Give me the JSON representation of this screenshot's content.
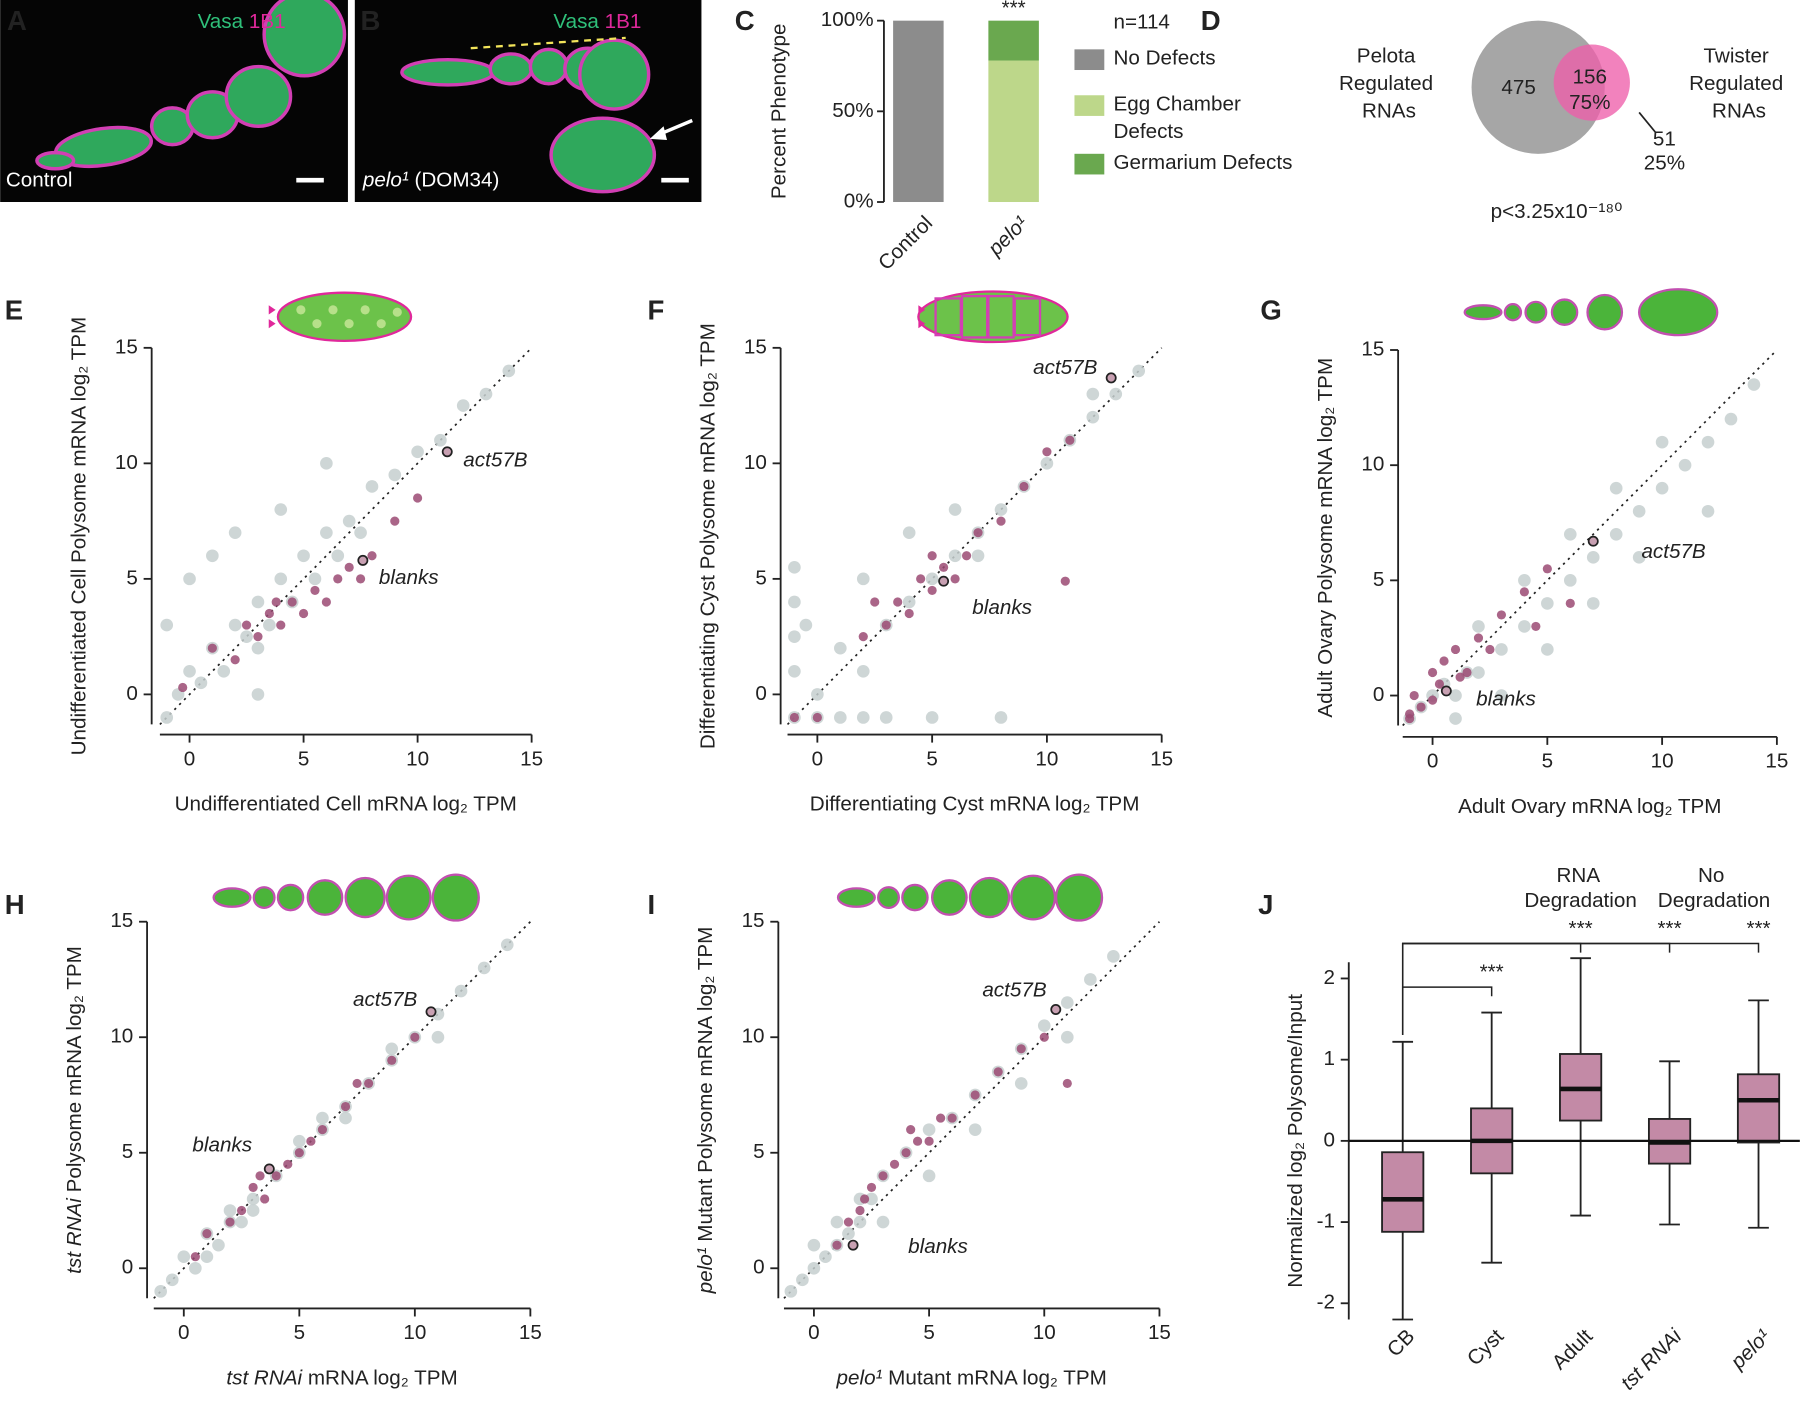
{
  "panel_labels": [
    "A",
    "B",
    "C",
    "D",
    "E",
    "F",
    "G",
    "H",
    "I",
    "J"
  ],
  "micrographs": [
    {
      "stain_1": "Vasa",
      "stain_2": "1B1",
      "caption": [
        {
          "text": "Control"
        }
      ]
    },
    {
      "stain_1": "Vasa",
      "stain_2": "1B1",
      "caption": [
        {
          "text": "pelo¹",
          "italic": true
        },
        {
          "text": " (DOM34)"
        }
      ]
    }
  ],
  "chart_data": [
    {
      "type": "bar",
      "stacked": true,
      "ylabel": [
        {
          "text": "Percent Phenotype"
        }
      ],
      "categories": [
        "Control",
        "pelo¹"
      ],
      "categories_italic": [
        false,
        true
      ],
      "series": [
        {
          "name": "No Defects",
          "color": "#8c8c8c",
          "values": [
            100,
            0
          ]
        },
        {
          "name": "Egg Chamber Defects",
          "color": "#bdd78a",
          "values": [
            0,
            78
          ]
        },
        {
          "name": "Germarium Defects",
          "color": "#6aa84f",
          "values": [
            0,
            22
          ]
        }
      ],
      "ylim": [
        0,
        100
      ],
      "yticks": [
        {
          "value": 0,
          "label": "0%"
        },
        {
          "value": 50,
          "label": "50%"
        },
        {
          "value": 100,
          "label": "100%"
        }
      ],
      "legend_title": "n=114",
      "annotations": [
        {
          "text": "***",
          "category": 1
        }
      ]
    },
    {
      "type": "venn",
      "sets": [
        {
          "name": "Pelota Regulated RNAs",
          "color": "#a6a6a6",
          "only": 475
        },
        {
          "name": "Twister Regulated RNAs",
          "color": "#ee5fab",
          "only": 51,
          "only_percent": {
            "value": 25,
            "label": "25%"
          }
        }
      ],
      "overlap": 156,
      "overlap_percent": {
        "value": 75,
        "label": "75%"
      },
      "p_value_text": "p<3.25x10⁻¹⁸⁰"
    },
    {
      "type": "scatter",
      "ylabel": [
        {
          "text": "Undifferentiated Cell Polysome mRNA log₂ TPM"
        }
      ],
      "xlabel": [
        {
          "text": "Undifferentiated Cell mRNA log₂ TPM"
        }
      ],
      "xlim": [
        -1.3,
        15
      ],
      "ylim": [
        -1.3,
        15
      ],
      "xticks": [
        0,
        5,
        10,
        15
      ],
      "yticks": [
        0,
        5,
        10,
        15
      ],
      "diagonal": true,
      "series": [
        {
          "color": "#c5cfcf",
          "x": [
            -1,
            -0.5,
            0,
            0.5,
            1,
            1.5,
            2,
            2.5,
            3,
            3.5,
            4,
            4.5,
            5,
            5.5,
            6,
            6.5,
            7,
            7.5,
            8,
            9,
            10,
            11,
            12,
            13,
            14,
            -1,
            0,
            1,
            2,
            3,
            4,
            6,
            3
          ],
          "values": [
            -1,
            0,
            1,
            0.5,
            2,
            1,
            3,
            2.5,
            4,
            3,
            5,
            4,
            6,
            5,
            7,
            6,
            7.5,
            7,
            9,
            9.5,
            10.5,
            11,
            12.5,
            13,
            14,
            3,
            5,
            6,
            7,
            2,
            8,
            10,
            0
          ]
        },
        {
          "color": "#9b4a73",
          "x": [
            -0.3,
            1,
            2,
            2.5,
            3,
            3.5,
            4,
            4.5,
            5,
            5.5,
            6,
            6.5,
            7,
            7.5,
            8,
            9,
            10,
            3.8
          ],
          "values": [
            0.3,
            2,
            1.5,
            3,
            2.5,
            3.5,
            3,
            4,
            3.5,
            4.5,
            4,
            5,
            5.5,
            5,
            6,
            7.5,
            8.5,
            4
          ]
        }
      ],
      "annotations": [
        {
          "text": "act57B",
          "x": 11.3,
          "y": 10.5
        },
        {
          "text": "blanks",
          "x": 7.6,
          "y": 5.8
        }
      ]
    },
    {
      "type": "scatter",
      "ylabel": [
        {
          "text": "Differentiating Cyst Polysome mRNA log₂ TPM"
        }
      ],
      "xlabel": [
        {
          "text": "Differentiating Cyst mRNA log₂ TPM"
        }
      ],
      "xlim": [
        -1.3,
        15
      ],
      "ylim": [
        -1.3,
        15
      ],
      "xticks": [
        0,
        5,
        10,
        15
      ],
      "yticks": [
        0,
        5,
        10,
        15
      ],
      "diagonal": true,
      "series": [
        {
          "color": "#c5cfcf",
          "x": [
            -1,
            -1,
            -1,
            -1,
            -1,
            0,
            1,
            2,
            3,
            4,
            5,
            6,
            7,
            8,
            9,
            10,
            11,
            12,
            13,
            14,
            0,
            1,
            2,
            3,
            5,
            8,
            6,
            2,
            4,
            -0.5,
            7,
            12
          ],
          "values": [
            -1,
            1,
            2.5,
            4,
            5.5,
            0,
            2,
            1,
            3,
            4,
            5,
            6,
            7,
            8,
            9,
            10,
            11,
            12,
            13,
            14,
            -1,
            -1,
            -1,
            -1,
            -1,
            -1,
            8,
            5,
            7,
            3,
            6,
            13
          ]
        },
        {
          "color": "#9b4a73",
          "x": [
            2,
            3,
            3.5,
            4,
            4.5,
            5,
            5.5,
            6,
            6.5,
            7,
            8,
            9,
            10,
            11,
            2.5,
            5,
            -1,
            0,
            10.8
          ],
          "values": [
            2.5,
            3,
            4,
            3.5,
            5,
            4.5,
            5.5,
            5,
            6,
            7,
            7.5,
            9,
            10.5,
            11,
            4,
            6,
            -1,
            -1,
            4.9
          ]
        }
      ],
      "annotations": [
        {
          "text": "act57B",
          "x": 12.8,
          "y": 13.7
        },
        {
          "text": "blanks",
          "x": 5.5,
          "y": 4.9
        }
      ]
    },
    {
      "type": "scatter",
      "ylabel": [
        {
          "text": "Adult Ovary Polysome mRNA log₂ TPM"
        }
      ],
      "xlabel": [
        {
          "text": "Adult Ovary mRNA log₂ TPM"
        }
      ],
      "xlim": [
        -1.3,
        15
      ],
      "ylim": [
        -1.3,
        15
      ],
      "xticks": [
        0,
        5,
        10,
        15
      ],
      "yticks": [
        0,
        5,
        10,
        15
      ],
      "diagonal": true,
      "series": [
        {
          "color": "#c5cfcf",
          "x": [
            -1,
            -0.5,
            0,
            0.5,
            1,
            1.5,
            2,
            3,
            4,
            5,
            6,
            7,
            8,
            9,
            10,
            11,
            12,
            13,
            14,
            2,
            4,
            6,
            8,
            10,
            1,
            3,
            5,
            7,
            9,
            12
          ],
          "values": [
            -1,
            -0.5,
            0,
            0.5,
            0,
            1,
            1,
            2,
            3,
            4,
            5,
            6,
            7,
            8,
            9,
            10,
            11,
            12,
            13.5,
            3,
            5,
            7,
            9,
            11,
            -1,
            0,
            2,
            4,
            6,
            8
          ]
        },
        {
          "color": "#9b4a73",
          "x": [
            -1,
            -0.8,
            -0.5,
            0,
            0.3,
            0.5,
            1,
            1.5,
            2,
            2.5,
            3,
            4,
            5,
            -1,
            0,
            1.2,
            4.5,
            6
          ],
          "values": [
            -1,
            0,
            -0.5,
            1,
            0.5,
            1.5,
            2,
            1,
            2.5,
            2,
            3.5,
            4.5,
            5.5,
            -0.8,
            -0.2,
            0.8,
            3,
            4
          ]
        }
      ],
      "annotations": [
        {
          "text": "act57B",
          "x": 7,
          "y": 6.7
        },
        {
          "text": "blanks",
          "x": 0.6,
          "y": 0.2
        }
      ]
    },
    {
      "type": "scatter",
      "ylabel": [
        {
          "text": "tst RNAi",
          "italic": true
        },
        {
          "text": " Polysome mRNA log₂ TPM"
        }
      ],
      "xlabel": [
        {
          "text": "tst RNAi",
          "italic": true
        },
        {
          "text": " mRNA log₂ TPM"
        }
      ],
      "xlim": [
        -1.3,
        15
      ],
      "ylim": [
        -1.3,
        15
      ],
      "xticks": [
        0,
        5,
        10,
        15
      ],
      "yticks": [
        0,
        5,
        10,
        15
      ],
      "diagonal": true,
      "series": [
        {
          "color": "#c5cfcf",
          "x": [
            -1,
            -0.5,
            0,
            0.5,
            1,
            1.5,
            2,
            2.5,
            3,
            4,
            5,
            6,
            7,
            8,
            9,
            10,
            11,
            12,
            13,
            14,
            1,
            3,
            5,
            7,
            9,
            11,
            2,
            6
          ],
          "values": [
            -1,
            -0.5,
            0.5,
            0,
            1.5,
            1,
            2.5,
            2,
            3,
            4,
            5,
            6,
            7,
            8,
            9,
            10,
            11,
            12,
            13,
            14,
            0.5,
            2.5,
            5.5,
            6.5,
            9.5,
            10,
            2,
            6.5
          ]
        },
        {
          "color": "#9b4a73",
          "x": [
            0.5,
            1,
            2,
            2.5,
            3,
            3.5,
            4,
            4.5,
            5,
            5.5,
            6,
            7,
            8,
            9,
            10,
            7.5,
            3.3
          ],
          "values": [
            0.5,
            1.5,
            2,
            2.5,
            3.5,
            3,
            4,
            4.5,
            5,
            5.5,
            6,
            7,
            8,
            9,
            10,
            8,
            4
          ]
        }
      ],
      "annotations": [
        {
          "text": "act57B",
          "x": 10.7,
          "y": 11.1
        },
        {
          "text": "blanks",
          "x": 3.7,
          "y": 4.3
        }
      ]
    },
    {
      "type": "scatter",
      "ylabel": [
        {
          "text": "pelo¹",
          "italic": true
        },
        {
          "text": " Mutant Polysome mRNA log₂ TPM"
        }
      ],
      "xlabel": [
        {
          "text": "pelo¹",
          "italic": true
        },
        {
          "text": " Mutant mRNA log₂ TPM"
        }
      ],
      "xlim": [
        -1.3,
        15
      ],
      "ylim": [
        -1.3,
        15
      ],
      "xticks": [
        0,
        5,
        10,
        15
      ],
      "yticks": [
        0,
        5,
        10,
        15
      ],
      "diagonal": true,
      "series": [
        {
          "color": "#c5cfcf",
          "x": [
            -1,
            -0.5,
            0,
            0.5,
            1,
            1.5,
            2,
            2.5,
            3,
            4,
            5,
            6,
            7,
            8,
            9,
            10,
            11,
            12,
            13,
            0,
            1,
            2,
            3,
            5,
            7,
            9,
            11
          ],
          "values": [
            -1,
            -0.5,
            0,
            0.5,
            1,
            1.5,
            2,
            3,
            4,
            5,
            6,
            6.5,
            7.5,
            8.5,
            9.5,
            10.5,
            11.5,
            12.5,
            13.5,
            1,
            2,
            3,
            2,
            4,
            6,
            8,
            10
          ]
        },
        {
          "color": "#9b4a73",
          "x": [
            1,
            1.5,
            2,
            2.5,
            3,
            3.5,
            4,
            4.5,
            5,
            5.5,
            6,
            7,
            8,
            9,
            10,
            11,
            2.2,
            4.2
          ],
          "values": [
            1,
            2,
            2.5,
            3.5,
            4,
            4.5,
            5,
            5.5,
            5.5,
            6.5,
            6.5,
            7.5,
            8.5,
            9.5,
            10,
            8,
            3,
            6
          ]
        }
      ],
      "annotations": [
        {
          "text": "act57B",
          "x": 10.5,
          "y": 11.2
        },
        {
          "text": "blanks",
          "x": 1.7,
          "y": 1
        }
      ]
    },
    {
      "type": "box",
      "ylabel": [
        {
          "text": "Normalized log₂ Polysome/Input"
        }
      ],
      "categories": [
        "CB",
        "Cyst",
        "Adult",
        "tst RNAi",
        "pelo¹"
      ],
      "categories_italic": [
        false,
        false,
        false,
        true,
        true
      ],
      "color": "#c38aa6",
      "ylim": [
        -2.2,
        2.2
      ],
      "yticks": [
        -2,
        -1,
        0,
        1,
        2
      ],
      "reference_line": 0,
      "boxes": [
        {
          "min": -2.2,
          "q1": -1.12,
          "median": -0.72,
          "q3": -0.14,
          "max": 1.22
        },
        {
          "min": -1.5,
          "q1": -0.4,
          "median": 0,
          "q3": 0.4,
          "max": 1.58
        },
        {
          "min": -0.92,
          "q1": 0.25,
          "median": 0.64,
          "q3": 1.07,
          "max": 2.25
        },
        {
          "min": -1.03,
          "q1": -0.28,
          "median": -0.02,
          "q3": 0.27,
          "max": 0.98
        },
        {
          "min": -1.07,
          "q1": -0.02,
          "median": 0.5,
          "q3": 0.82,
          "max": 1.73
        }
      ],
      "comparisons": [
        {
          "from": 0,
          "to": 1,
          "text": "***"
        },
        {
          "from": 0,
          "to": 2,
          "text": "***"
        },
        {
          "from": 0,
          "to": 3,
          "text": "***"
        },
        {
          "from": 0,
          "to": 4,
          "text": "***"
        }
      ],
      "group_labels": [
        {
          "text": "RNA Degradation",
          "categories": [
            2
          ]
        },
        {
          "text": "No Degradation",
          "categories": [
            3,
            4
          ]
        }
      ]
    }
  ]
}
